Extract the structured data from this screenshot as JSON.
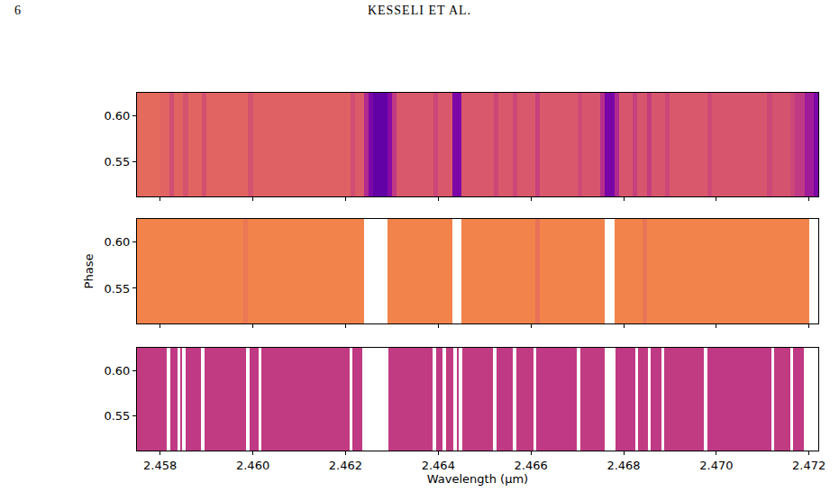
{
  "page_header": {
    "page": "6",
    "running_head": "KESSELI ET AL."
  },
  "chart_data": [
    {
      "type": "heatmap",
      "x": [
        2.4575,
        2.458,
        2.4582,
        2.4583,
        2.4585,
        2.4586,
        2.4589,
        2.459,
        2.4599,
        2.46,
        2.4621,
        2.4622,
        2.4624,
        2.4625,
        2.4626,
        2.4629,
        2.463,
        2.4631,
        2.4639,
        2.464,
        2.4643,
        2.4645,
        2.4652,
        2.4653,
        2.4656,
        2.4657,
        2.4661,
        2.4662,
        2.467,
        2.4671,
        2.4675,
        2.4676,
        2.4678,
        2.4679,
        2.4682,
        2.4683,
        2.4685,
        2.4686,
        2.4689,
        2.469,
        2.4698,
        2.4699,
        2.4711,
        2.4712,
        2.4716,
        2.4717,
        2.4719,
        2.4721,
        2.4722
      ],
      "y": [
        0.512,
        0.625
      ],
      "z": [
        [
          0.62,
          0.6,
          0.52,
          0.6,
          0.54,
          0.6,
          0.53,
          0.6,
          0.54,
          0.59,
          0.52,
          0.57,
          0.4,
          0.25,
          0.18,
          0.28,
          0.45,
          0.56,
          0.5,
          0.56,
          0.25,
          0.56,
          0.5,
          0.56,
          0.5,
          0.56,
          0.48,
          0.56,
          0.51,
          0.55,
          0.42,
          0.24,
          0.4,
          0.55,
          0.48,
          0.55,
          0.47,
          0.55,
          0.5,
          0.56,
          0.51,
          0.55,
          0.5,
          0.54,
          0.5,
          0.45,
          0.35,
          0.25
        ]
      ],
      "zlim": [
        0,
        1
      ],
      "xlim": [
        2.4575,
        2.4722
      ],
      "ylim": [
        0.512,
        0.625
      ],
      "xticks": [
        2.458,
        {
          "value": 2.46,
          "label": "2.460"
        },
        2.462,
        2.464,
        2.466,
        2.468,
        {
          "value": 2.47,
          "label": "2.470"
        },
        2.472
      ],
      "yticks": [
        0.55,
        {
          "value": 0.6,
          "label": "0.60"
        }
      ],
      "tick_labels": "y"
    },
    {
      "type": "heatmap",
      "x": [
        2.4575,
        2.4598,
        2.4599,
        2.4624,
        2.4629,
        2.4643,
        2.4645,
        2.4661,
        2.4662,
        2.4676,
        2.4678,
        2.4684,
        2.4685,
        2.472,
        2.4722
      ],
      "y": [
        0.512,
        0.625
      ],
      "z": [
        [
          0.7,
          0.66,
          0.7,
          null,
          0.7,
          null,
          0.7,
          0.64,
          0.7,
          null,
          0.7,
          0.65,
          0.7,
          null
        ]
      ],
      "zlim": [
        0,
        1
      ],
      "xlim": [
        2.4575,
        2.4722
      ],
      "ylim": [
        0.512,
        0.625
      ],
      "xticks": [
        2.458,
        {
          "value": 2.46,
          "label": "2.460"
        },
        2.462,
        2.464,
        2.466,
        2.468,
        {
          "value": 2.47,
          "label": "2.470"
        },
        2.472
      ],
      "yticks": [
        0.55,
        {
          "value": 0.6,
          "label": "0.60"
        }
      ],
      "y_label": "Phase",
      "tick_labels": "y"
    },
    {
      "type": "heatmap",
      "x": [
        2.4575,
        2.45814,
        2.45821,
        2.45837,
        2.45844,
        2.45848,
        2.45855,
        2.45889,
        2.45896,
        2.45986,
        2.45993,
        2.46012,
        2.46019,
        2.46208,
        2.46215,
        2.46237,
        2.46293,
        2.46388,
        2.46395,
        2.4641,
        2.46417,
        2.46433,
        2.4644,
        2.46445,
        2.46452,
        2.46519,
        2.46526,
        2.46561,
        2.46568,
        2.46605,
        2.46612,
        2.46699,
        2.46706,
        2.46759,
        2.46783,
        2.46825,
        2.46832,
        2.46852,
        2.46859,
        2.46881,
        2.46888,
        2.46973,
        2.4698,
        2.47118,
        2.47125,
        2.47159,
        2.47166,
        2.47188,
        2.4722
      ],
      "y": [
        0.512,
        0.625
      ],
      "z": [
        [
          0.46,
          null,
          0.45,
          null,
          0.46,
          null,
          0.45,
          null,
          0.46,
          null,
          0.45,
          null,
          0.46,
          null,
          0.45,
          null,
          0.46,
          null,
          0.45,
          null,
          0.46,
          null,
          0.45,
          null,
          0.46,
          null,
          0.45,
          null,
          0.46,
          null,
          0.45,
          null,
          0.46,
          null,
          0.45,
          null,
          0.46,
          null,
          0.45,
          null,
          0.46,
          null,
          0.45,
          null,
          0.46,
          null,
          0.45,
          null
        ]
      ],
      "zlim": [
        0,
        1
      ],
      "xlim": [
        2.4575,
        2.4722
      ],
      "ylim": [
        0.512,
        0.625
      ],
      "xticks": [
        2.458,
        {
          "value": 2.46,
          "label": "2.460"
        },
        2.462,
        2.464,
        2.466,
        2.468,
        {
          "value": 2.47,
          "label": "2.470"
        },
        2.472
      ],
      "yticks": [
        0.55,
        {
          "value": 0.6,
          "label": "0.60"
        }
      ],
      "x_label": "Wavelength (μm)"
    }
  ]
}
